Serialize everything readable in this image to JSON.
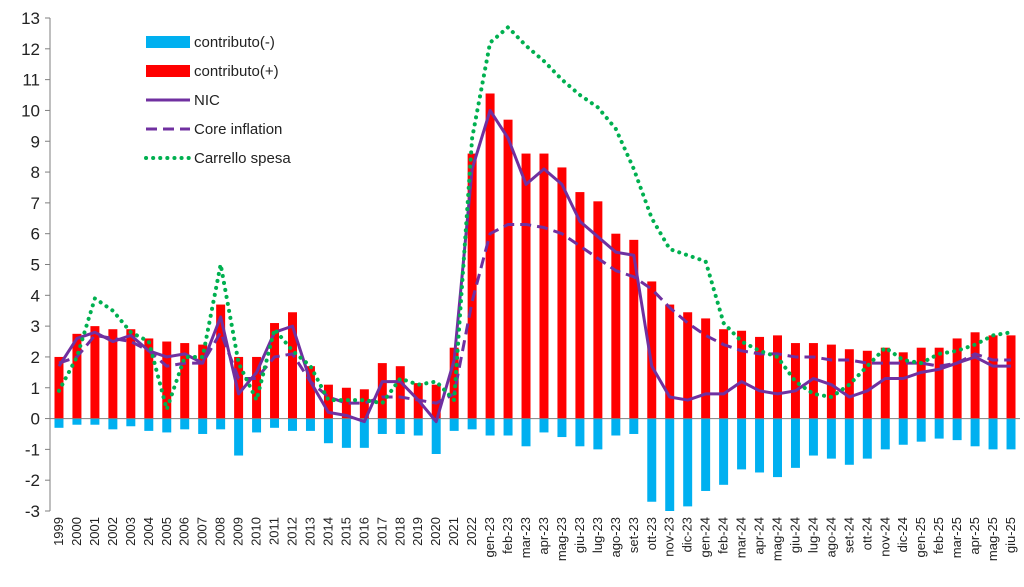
{
  "chart_data": {
    "type": "bar",
    "title": "",
    "xlabel": "",
    "ylabel": "",
    "ylim": [
      -3,
      13
    ],
    "yticks": [
      -3,
      -2,
      -1,
      0,
      1,
      2,
      3,
      4,
      5,
      6,
      7,
      8,
      9,
      10,
      11,
      12,
      13
    ],
    "grid": false,
    "legend_position": "top-left",
    "categories": [
      "1999",
      "2000",
      "2001",
      "2002",
      "2003",
      "2004",
      "2005",
      "2006",
      "2007",
      "2008",
      "2009",
      "2010",
      "2011",
      "2012",
      "2013",
      "2014",
      "2015",
      "2016",
      "2017",
      "2018",
      "2019",
      "2020",
      "2021",
      "2022",
      "gen-23",
      "feb-23",
      "mar-23",
      "apr-23",
      "mag-23",
      "giu-23",
      "lug-23",
      "ago-23",
      "set-23",
      "ott-23",
      "nov-23",
      "dic-23",
      "gen-24",
      "feb-24",
      "mar-24",
      "apr-24",
      "mag-24",
      "giu-24",
      "lug-24",
      "ago-24",
      "set-24",
      "ott-24",
      "nov-24",
      "dic-24",
      "gen-25",
      "feb-25",
      "mar-25",
      "apr-25",
      "mag-25",
      "giu-25"
    ],
    "series": [
      {
        "name": "contributo(-)",
        "kind": "bar",
        "color": "#00b0f0",
        "values": [
          -0.3,
          -0.2,
          -0.2,
          -0.35,
          -0.25,
          -0.4,
          -0.45,
          -0.35,
          -0.5,
          -0.35,
          -1.2,
          -0.45,
          -0.3,
          -0.4,
          -0.4,
          -0.8,
          -0.95,
          -0.95,
          -0.5,
          -0.5,
          -0.55,
          -1.15,
          -0.4,
          -0.35,
          -0.55,
          -0.55,
          -0.9,
          -0.45,
          -0.6,
          -0.9,
          -1.0,
          -0.55,
          -0.5,
          -2.7,
          -3.0,
          -2.85,
          -2.35,
          -2.15,
          -1.65,
          -1.75,
          -1.9,
          -1.6,
          -1.2,
          -1.3,
          -1.5,
          -1.3,
          -1.0,
          -0.85,
          -0.75,
          -0.65,
          -0.7,
          -0.9,
          -1.0,
          -1.0
        ]
      },
      {
        "name": "contributo(+)",
        "kind": "bar",
        "color": "#ff0000",
        "values": [
          2.0,
          2.75,
          3.0,
          2.9,
          2.9,
          2.6,
          2.5,
          2.45,
          2.4,
          3.7,
          2.0,
          2.0,
          3.1,
          3.45,
          1.7,
          1.1,
          1.0,
          0.95,
          1.8,
          1.7,
          1.15,
          1.1,
          2.3,
          8.6,
          10.55,
          9.7,
          8.6,
          8.6,
          8.15,
          7.35,
          7.05,
          6.0,
          5.8,
          4.45,
          3.7,
          3.45,
          3.25,
          2.9,
          2.85,
          2.65,
          2.7,
          2.45,
          2.45,
          2.4,
          2.25,
          2.2,
          2.3,
          2.15,
          2.3,
          2.3,
          2.6,
          2.8,
          2.7,
          2.7
        ]
      },
      {
        "name": "NIC",
        "kind": "line",
        "style": "solid",
        "color": "#7030a0",
        "values": [
          1.7,
          2.6,
          2.8,
          2.5,
          2.7,
          2.2,
          2.0,
          2.1,
          1.8,
          3.3,
          0.8,
          1.5,
          2.8,
          3.0,
          1.2,
          0.2,
          0.1,
          -0.1,
          1.2,
          1.2,
          0.6,
          -0.1,
          1.9,
          8.1,
          10.0,
          9.1,
          7.6,
          8.1,
          7.6,
          6.4,
          5.9,
          5.4,
          5.3,
          1.7,
          0.7,
          0.6,
          0.8,
          0.8,
          1.2,
          0.9,
          0.8,
          0.9,
          1.3,
          1.1,
          0.7,
          0.9,
          1.3,
          1.3,
          1.5,
          1.6,
          1.8,
          2.0,
          1.7,
          1.7
        ]
      },
      {
        "name": "Core inflation",
        "kind": "line",
        "style": "dashed",
        "color": "#7030a0",
        "values": [
          1.8,
          2.0,
          2.7,
          2.6,
          2.5,
          2.2,
          1.7,
          1.8,
          1.8,
          2.8,
          1.3,
          1.3,
          2.0,
          2.1,
          1.2,
          0.7,
          0.5,
          0.5,
          0.7,
          0.7,
          0.6,
          0.5,
          0.8,
          3.8,
          6.0,
          6.3,
          6.3,
          6.2,
          6.0,
          5.6,
          5.2,
          4.8,
          4.6,
          4.2,
          3.6,
          3.1,
          2.7,
          2.4,
          2.2,
          2.1,
          2.1,
          2.0,
          2.0,
          1.9,
          1.9,
          1.8,
          1.8,
          1.8,
          1.8,
          1.7,
          1.8,
          2.1,
          1.9,
          1.9
        ]
      },
      {
        "name": "Carrello spesa",
        "kind": "line",
        "style": "dotted",
        "color": "#00b050",
        "values": [
          0.9,
          2.0,
          3.9,
          3.5,
          2.8,
          2.5,
          0.3,
          2.0,
          2.0,
          5.0,
          1.8,
          0.6,
          2.9,
          2.2,
          1.7,
          0.6,
          0.6,
          0.6,
          0.5,
          1.3,
          1.1,
          1.2,
          0.6,
          9.1,
          12.2,
          12.7,
          12.1,
          11.6,
          11.0,
          10.5,
          10.1,
          9.4,
          8.1,
          6.5,
          5.5,
          5.3,
          5.1,
          3.1,
          2.5,
          2.2,
          2.0,
          1.2,
          0.8,
          0.7,
          1.1,
          1.7,
          2.3,
          1.9,
          1.8,
          2.1,
          2.2,
          2.4,
          2.7,
          2.8
        ]
      }
    ]
  }
}
